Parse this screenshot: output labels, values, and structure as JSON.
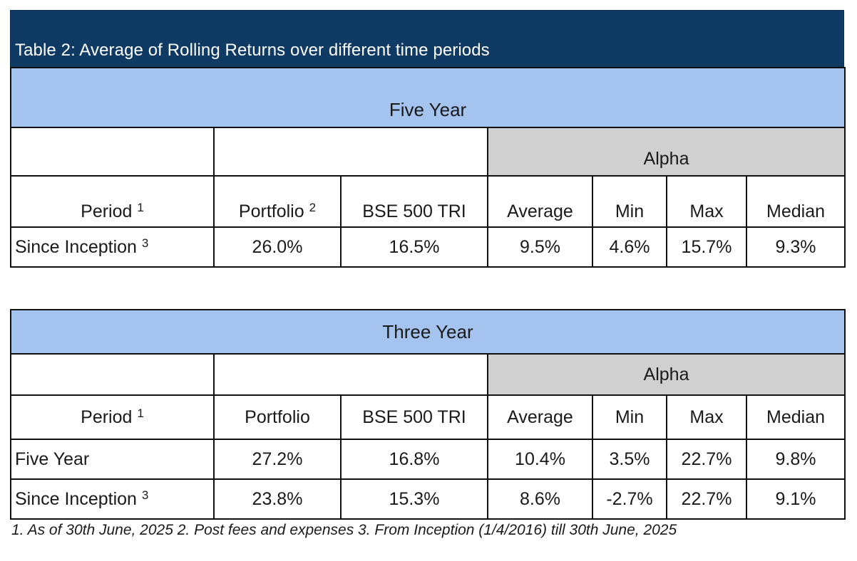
{
  "title": "Table 2: Average of Rolling Returns over different time periods",
  "table1": {
    "band": "Five Year",
    "alpha_label": "Alpha",
    "headers": {
      "period": "Period",
      "period_sup": "1",
      "portfolio": "Portfolio",
      "portfolio_sup": "2",
      "benchmark": "BSE 500 TRI",
      "average": "Average",
      "min": "Min",
      "max": "Max",
      "median": "Median"
    },
    "rows": [
      {
        "period": "Since Inception",
        "sup": "3",
        "portfolio": "26.0%",
        "benchmark": "16.5%",
        "average": "9.5%",
        "min": "4.6%",
        "max": "15.7%",
        "median": "9.3%"
      }
    ]
  },
  "table2": {
    "band": "Three Year",
    "alpha_label": "Alpha",
    "headers": {
      "period": "Period",
      "period_sup": "1",
      "portfolio": "Portfolio",
      "benchmark": "BSE 500 TRI",
      "average": "Average",
      "min": "Min",
      "max": "Max",
      "median": "Median"
    },
    "rows": [
      {
        "period": "Five Year",
        "portfolio": "27.2%",
        "benchmark": "16.8%",
        "average": "10.4%",
        "min": "3.5%",
        "max": "22.7%",
        "median": "9.8%"
      },
      {
        "period": "Since Inception",
        "sup": "3",
        "portfolio": "23.8%",
        "benchmark": "15.3%",
        "average": "8.6%",
        "min": "-2.7%",
        "max": "22.7%",
        "median": "9.1%"
      }
    ]
  },
  "footnote": "1. As of 30th June, 2025 2. Post fees and expenses 3. From Inception (1/4/2016) till 30th June, 2025",
  "colors": {
    "title_bg": "#0e3a63",
    "band_bg": "#a4c3ef",
    "alpha_bg": "#d0d0d0"
  }
}
